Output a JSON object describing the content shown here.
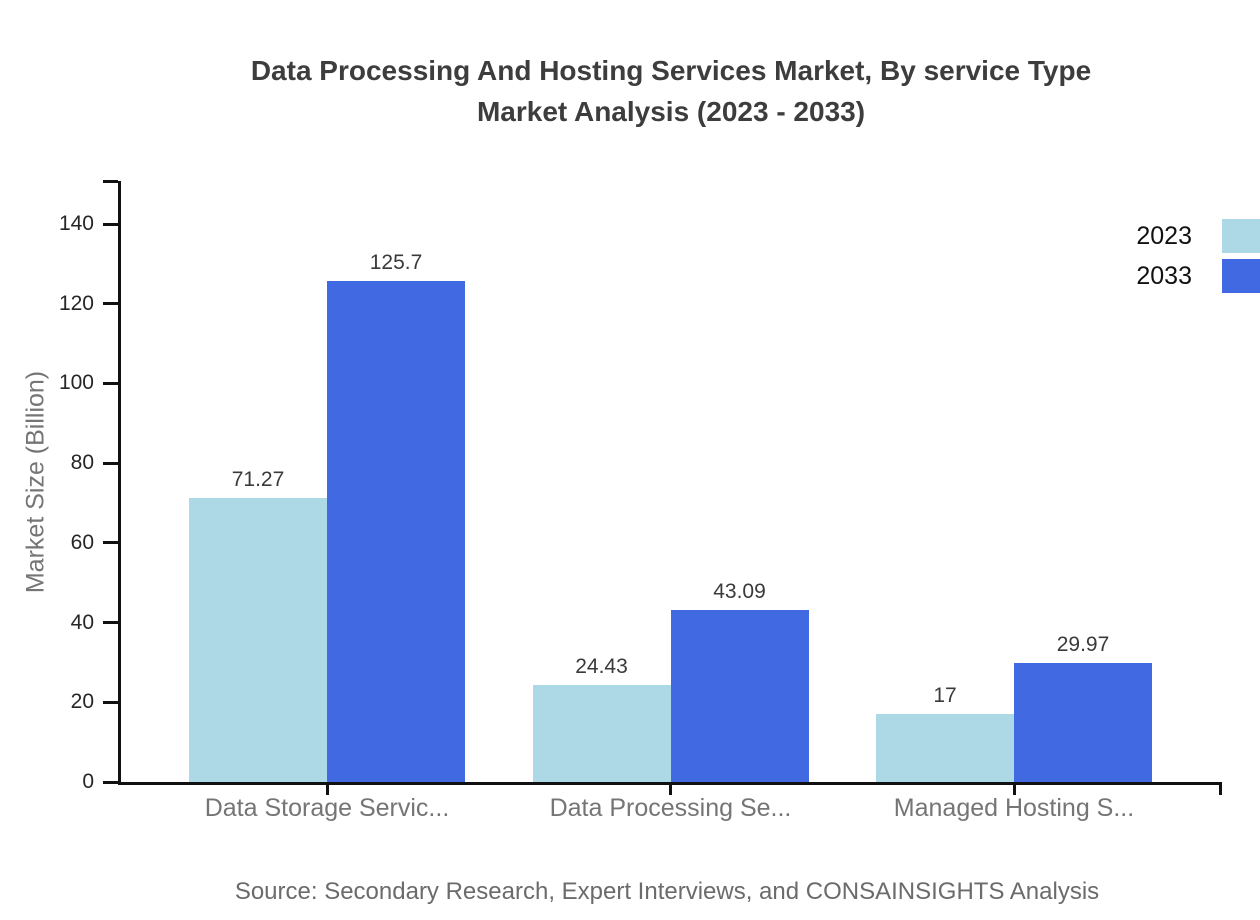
{
  "title": {
    "line1": "Data Processing And Hosting Services Market, By service Type",
    "line2": "Market Analysis (2023 - 2033)"
  },
  "source": "Source: Secondary Research, Expert Interviews, and CONSAINSIGHTS Analysis",
  "legend": {
    "items": [
      {
        "label": "2023",
        "color": "#ADD8E6"
      },
      {
        "label": "2033",
        "color": "#4169E1"
      }
    ]
  },
  "chart_data": {
    "type": "bar",
    "title": "Data Processing And Hosting Services Market, By service Type Market Analysis (2023 - 2033)",
    "categories": [
      "Data Storage Servic...",
      "Data Processing Se...",
      "Managed Hosting S..."
    ],
    "series": [
      {
        "name": "2023",
        "color": "#ADD8E6",
        "values": [
          71.27,
          24.43,
          17
        ],
        "labels": [
          "71.27",
          "24.43",
          "17"
        ]
      },
      {
        "name": "2033",
        "color": "#4169E1",
        "values": [
          125.7,
          43.09,
          29.97
        ],
        "labels": [
          "125.7",
          "43.09",
          "29.97"
        ]
      }
    ],
    "xlabel": "",
    "ylabel": "Market Size (Billion)",
    "ylim": [
      0,
      150
    ],
    "yticks": [
      0,
      20,
      40,
      60,
      80,
      100,
      120,
      140
    ],
    "grid": false,
    "legend_position": "top-right-outside",
    "value_labels": true
  }
}
